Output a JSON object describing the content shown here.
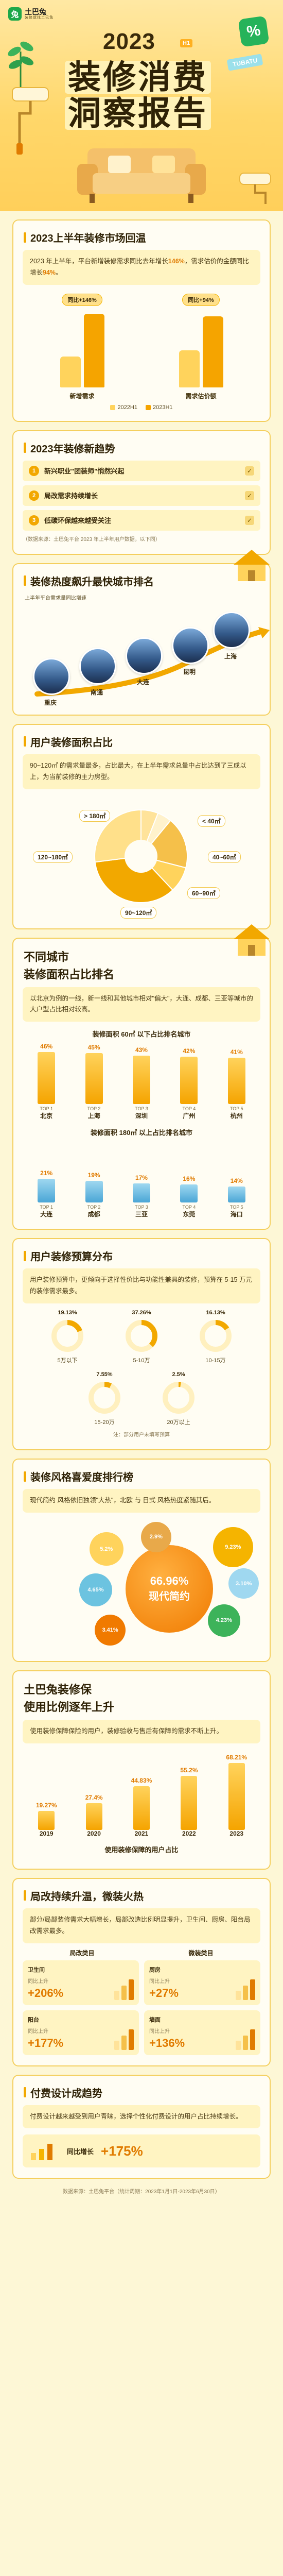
{
  "brand": {
    "name": "土巴兔",
    "sub": "装修就找土巴兔"
  },
  "hero": {
    "year": "2023",
    "tag": "H1",
    "title1": "装修消费",
    "title2": "洞察报告",
    "deco_green": "%",
    "deco_tag": "TUBATU"
  },
  "market": {
    "title": "2023上半年装修市场回温",
    "intro_pre": "2023 年上半年，平台新增装修需求同比去年增长",
    "intro_v1": "146%",
    "intro_mid": "，需求估价的金额同比增长",
    "intro_v2": "94%",
    "intro_end": "。",
    "groups": [
      {
        "label": "新增需求",
        "badge": "同比+146%",
        "a": 0.4,
        "b": 0.95
      },
      {
        "label": "需求估价额",
        "badge": "同比+94%",
        "a": 0.48,
        "b": 0.92
      }
    ],
    "legend_a": "2022H1",
    "legend_b": "2023H1"
  },
  "trends": {
    "title": "2023年装修新趋势",
    "items": [
      {
        "num": "1",
        "text": "新兴职业\"团装师\"悄然兴起"
      },
      {
        "num": "2",
        "text": "局改需求持续增长"
      },
      {
        "num": "3",
        "text": "低碳环保越来越受关注"
      }
    ],
    "note": "（数据来源：土巴兔平台 2023 年上半年用户数据，以下同）"
  },
  "cities": {
    "title": "装修热度飙升最快城市排名",
    "caption": "上半年平台需求量同比增速",
    "items": [
      {
        "name": "重庆"
      },
      {
        "name": "南通"
      },
      {
        "name": "大连"
      },
      {
        "name": "昆明"
      },
      {
        "name": "上海"
      }
    ]
  },
  "area": {
    "title": "用户装修面积占比",
    "intro": "90~120㎡ 的需求量最多，占比最大，在上半年需求总量中占比达到了三成以上，为当前装修的主力房型。",
    "labels": [
      {
        "text": "> 180㎡"
      },
      {
        "text": "< 40㎡"
      },
      {
        "text": "120~180㎡"
      },
      {
        "text": "40~60㎡"
      },
      {
        "text": "90~120㎡"
      },
      {
        "text": "60~90㎡"
      }
    ],
    "values": [
      {
        "name": "> 180㎡",
        "value": 6
      },
      {
        "name": "< 40㎡",
        "value": 5
      },
      {
        "name": "120~180㎡",
        "value": 18
      },
      {
        "name": "40~60㎡",
        "value": 9
      },
      {
        "name": "90~120㎡",
        "value": 35
      },
      {
        "name": "60~90㎡",
        "value": 27
      }
    ]
  },
  "city_area": {
    "title1": "不同城市",
    "title2": "装修面积占比排名",
    "intro": "以北京为例的一线，新一线和其他城市相对\"偏大\"，大连、成都、三亚等城市的大户型占比相对较高。",
    "small_head": "装修面积 60㎡ 以下占比排名城市",
    "small": [
      {
        "city": "北京",
        "pct": "46%",
        "v": 46
      },
      {
        "city": "上海",
        "pct": "45%",
        "v": 45
      },
      {
        "city": "深圳",
        "pct": "43%",
        "v": 43
      },
      {
        "city": "广州",
        "pct": "42%",
        "v": 42
      },
      {
        "city": "杭州",
        "pct": "41%",
        "v": 41
      }
    ],
    "big_head": "装修面积 180㎡ 以上占比排名城市",
    "big": [
      {
        "city": "大连",
        "pct": "21%",
        "v": 21
      },
      {
        "city": "成都",
        "pct": "19%",
        "v": 19
      },
      {
        "city": "三亚",
        "pct": "17%",
        "v": 17
      },
      {
        "city": "东莞",
        "pct": "16%",
        "v": 16
      },
      {
        "city": "海口",
        "pct": "14%",
        "v": 14
      }
    ],
    "top_labels": [
      "TOP 1",
      "TOP 2",
      "TOP 3",
      "TOP 4",
      "TOP 5"
    ]
  },
  "budget": {
    "title": "用户装修预算分布",
    "intro": "用户装修预算中，更倾向于选择性价比与功能性兼具的装修，预算在 5-15 万元的装修需求最多。",
    "rings": [
      {
        "pct": "19.13%",
        "v": 19.13,
        "cap": "5万以下"
      },
      {
        "pct": "37.26%",
        "v": 37.26,
        "cap": "5-10万"
      },
      {
        "pct": "16.13%",
        "v": 16.13,
        "cap": "10-15万"
      },
      {
        "pct": "7.55%",
        "v": 7.55,
        "cap": "15-20万"
      },
      {
        "pct": "2.5%",
        "v": 2.5,
        "cap": "20万以上"
      }
    ],
    "note": "注：部分用户未填写预算"
  },
  "style": {
    "title": "装修风格喜爱度排行榜",
    "intro": "现代简约 风格依旧独领\"大热\"，北欧 与 日式 风格热度紧随其后。",
    "main": {
      "pct": "66.96%",
      "name": "现代简约",
      "v": 66.96
    },
    "others": [
      {
        "pct": "9.23%",
        "v": 9.23
      },
      {
        "pct": "5.2%",
        "v": 5.2
      },
      {
        "pct": "4.65%",
        "v": 4.65
      },
      {
        "pct": "4.23%",
        "v": 4.23
      },
      {
        "pct": "3.41%",
        "v": 3.41
      },
      {
        "pct": "3.10%",
        "v": 3.1
      },
      {
        "pct": "2.9%",
        "v": 2.9
      }
    ]
  },
  "usage": {
    "title1": "土巴兔装修保",
    "title2": "使用比例逐年上升",
    "intro": "使用装修保障保险的用户，装修验收与售后有保障的需求不断上升。",
    "bars": [
      {
        "pct": "19.27%",
        "v": 19.27,
        "year": "2019"
      },
      {
        "pct": "27.4%",
        "v": 27.4,
        "year": "2020"
      },
      {
        "pct": "44.83%",
        "v": 44.83,
        "year": "2021"
      },
      {
        "pct": "55.2%",
        "v": 55.2,
        "year": "2022"
      },
      {
        "pct": "68.21%",
        "v": 68.21,
        "year": "2023"
      }
    ],
    "caption": "使用装修保障的用户占比"
  },
  "local": {
    "title": "局改持续升温，微装火热",
    "intro": "部分/局部装修需求大幅增长，局部改造比例明显提升，卫生间、厨房、阳台局改需求最多。",
    "head1": "局改类目",
    "head2": "微装类目",
    "stats": [
      {
        "title": "卫生间",
        "val": "+206%"
      },
      {
        "title": "厨房",
        "val": "+27%"
      },
      {
        "title": "阳台",
        "val": "+177%"
      },
      {
        "title": "墙面",
        "val": "+136%"
      }
    ],
    "stat_label": "同比上升"
  },
  "paid": {
    "title": "付费设计成趋势",
    "intro": "付费设计越来越受到用户青睐，选择个性化付费设计的用户占比持续增长。",
    "row_title": "同比增长",
    "row_val": "+175%"
  },
  "footer": "数据来源：土巴兔平台（统计周期：2023年1月1日-2023年6月30日）"
}
